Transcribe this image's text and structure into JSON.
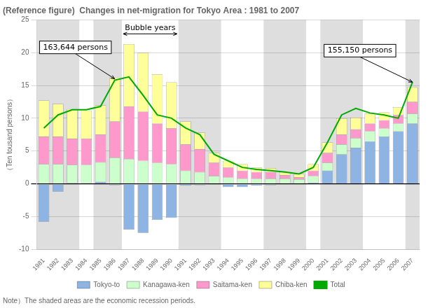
{
  "chart_data": {
    "type": "bar",
    "title": "(Reference figure)  Changes in net-migration for Tokyo Area : 1981 to 2007",
    "y_label": "（Ten tousand persons）",
    "note": "Note）The shaded areas are the economic recession periods.",
    "categories": [
      1981,
      1982,
      1983,
      1984,
      1985,
      1986,
      1987,
      1988,
      1989,
      1990,
      1991,
      1992,
      1993,
      1994,
      1995,
      1996,
      1997,
      1998,
      1999,
      2000,
      2001,
      2002,
      2003,
      2004,
      2005,
      2006,
      2007
    ],
    "series": [
      {
        "name": "Tokyo-to",
        "type": "bar",
        "color": "#8DB4E2",
        "values": [
          -5.8,
          -1.2,
          0.1,
          0.1,
          0.3,
          -0.2,
          -7.0,
          -7.5,
          -5.5,
          -5.2,
          -0.3,
          -0.2,
          -0.1,
          -0.5,
          -0.5,
          -0.3,
          -0.2,
          0.0,
          0.0,
          0.2,
          2.0,
          4.5,
          5.5,
          6.5,
          7.2,
          8.0,
          9.2
        ]
      },
      {
        "name": "Kanagawa-ken",
        "type": "bar",
        "color": "#CCFFCC",
        "values": [
          3.0,
          3.0,
          2.8,
          2.8,
          3.0,
          4.0,
          3.8,
          3.5,
          3.2,
          3.0,
          2.0,
          1.8,
          1.2,
          1.0,
          0.8,
          0.8,
          0.8,
          0.8,
          0.7,
          1.0,
          1.2,
          1.5,
          1.5,
          1.5,
          1.3,
          1.2,
          1.5
        ]
      },
      {
        "name": "Saitama-ken",
        "type": "bar",
        "color": "#FF99CC",
        "values": [
          4.2,
          4.2,
          4.0,
          4.0,
          4.2,
          5.5,
          8.0,
          7.5,
          6.0,
          5.5,
          4.0,
          3.5,
          2.0,
          1.5,
          1.2,
          1.0,
          1.0,
          0.5,
          0.3,
          0.8,
          1.5,
          1.5,
          1.3,
          1.2,
          1.2,
          1.3,
          1.8
        ]
      },
      {
        "name": "Chiba-ken",
        "type": "bar",
        "color": "#FFFF99",
        "values": [
          5.5,
          5.0,
          4.5,
          4.3,
          4.5,
          6.7,
          9.5,
          9.0,
          7.5,
          7.0,
          3.5,
          2.5,
          1.5,
          1.0,
          1.0,
          0.7,
          0.6,
          0.5,
          0.5,
          1.0,
          1.6,
          2.5,
          1.8,
          1.5,
          1.2,
          1.2,
          2.2
        ]
      },
      {
        "name": "Total",
        "type": "line",
        "color": "#00AA00",
        "values": [
          8.5,
          10.5,
          11.3,
          11.3,
          11.8,
          15.8,
          16.3,
          13.5,
          10.5,
          10.0,
          8.5,
          7.5,
          4.5,
          3.5,
          2.5,
          2.2,
          2.0,
          1.8,
          1.5,
          2.5,
          6.3,
          10.5,
          11.5,
          10.8,
          10.5,
          10.0,
          15.5
        ]
      }
    ],
    "stacked": true,
    "shaded_spans": [
      [
        1981,
        1982
      ],
      [
        1983,
        1983
      ],
      [
        1985,
        1986
      ],
      [
        1991,
        1993
      ],
      [
        1997,
        1999
      ],
      [
        2001,
        2003
      ],
      [
        2007,
        2007
      ]
    ],
    "annotations": [
      {
        "text": "Bubble years",
        "x_range": [
          1987,
          1990
        ]
      },
      {
        "text": "163,644 persons",
        "x": 1986,
        "y": 16.0
      },
      {
        "text": "155,150 persons",
        "x": 2007,
        "y": 15.5
      }
    ],
    "ylim": [
      -10,
      25
    ],
    "yticks": [
      -10,
      -5,
      0,
      5,
      10,
      15,
      20,
      25
    ],
    "grid": true,
    "legend": "bottom"
  }
}
